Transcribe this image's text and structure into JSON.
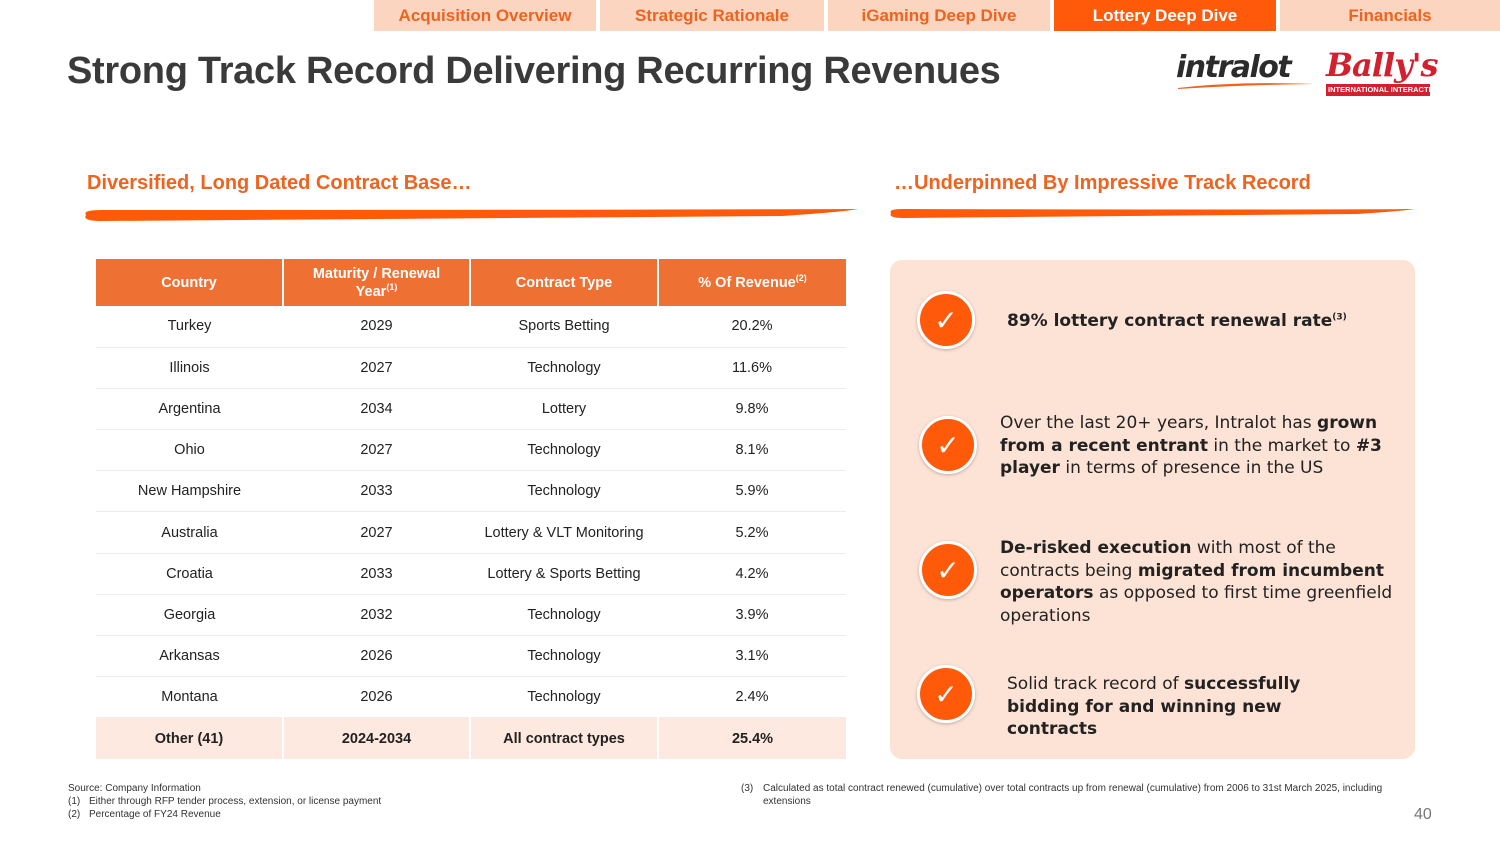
{
  "nav": {
    "tabs": [
      {
        "label": "Acquisition Overview",
        "active": false
      },
      {
        "label": "Strategic Rationale",
        "active": false
      },
      {
        "label": "iGaming Deep Dive",
        "active": false
      },
      {
        "label": "Lottery Deep Dive",
        "active": true
      },
      {
        "label": "Financials",
        "active": false
      }
    ]
  },
  "title": "Strong Track Record Delivering Recurring Revenues",
  "logos": {
    "intralot": "intralot",
    "ballys": "Bally's",
    "ballys_sub": "INTERNATIONAL INTERACTIVE"
  },
  "left_heading": "Diversified, Long Dated Contract Base…",
  "right_heading": "…Underpinned By Impressive Track Record",
  "table": {
    "headers": {
      "country": "Country",
      "maturity": "Maturity / Renewal Year",
      "maturity_note": "(1)",
      "contract_type": "Contract Type",
      "revenue": "% Of Revenue",
      "revenue_note": "(2)"
    },
    "rows": [
      {
        "country": "Turkey",
        "year": "2029",
        "type": "Sports Betting",
        "revenue": "20.2%"
      },
      {
        "country": "Illinois",
        "year": "2027",
        "type": "Technology",
        "revenue": "11.6%"
      },
      {
        "country": "Argentina",
        "year": "2034",
        "type": "Lottery",
        "revenue": "9.8%"
      },
      {
        "country": "Ohio",
        "year": "2027",
        "type": "Technology",
        "revenue": "8.1%"
      },
      {
        "country": "New Hampshire",
        "year": "2033",
        "type": "Technology",
        "revenue": "5.9%"
      },
      {
        "country": "Australia",
        "year": "2027",
        "type": "Lottery & VLT Monitoring",
        "revenue": "5.2%"
      },
      {
        "country": "Croatia",
        "year": "2033",
        "type": "Lottery & Sports Betting",
        "revenue": "4.2%"
      },
      {
        "country": "Georgia",
        "year": "2032",
        "type": "Technology",
        "revenue": "3.9%"
      },
      {
        "country": "Arkansas",
        "year": "2026",
        "type": "Technology",
        "revenue": "3.1%"
      },
      {
        "country": "Montana",
        "year": "2026",
        "type": "Technology",
        "revenue": "2.4%"
      }
    ],
    "other": {
      "country": "Other (41)",
      "year": "2024-2034",
      "type": "All contract types",
      "revenue": "25.4%"
    }
  },
  "points": {
    "p1": {
      "bold1": "89% lottery contract renewal rate",
      "note": "(3)"
    },
    "p2": {
      "t1": "Over the last 20+ years, Intralot has ",
      "b1": "grown from a recent entrant",
      "t2": " in the market to ",
      "b2": "#3 player",
      "t3": " in terms of presence in the US"
    },
    "p3": {
      "b1": "De-risked execution",
      "t1": " with most of the contracts being ",
      "b2": "migrated from incumbent operators",
      "t2": " as opposed to first time greenfield operations"
    },
    "p4": {
      "t1": "Solid track record of ",
      "b1": "successfully bidding for and winning new contracts"
    }
  },
  "check_glyph": "✓",
  "footnotes": {
    "source": "Source: Company Information",
    "n1_num": "(1)",
    "n1": "Either through RFP tender process, extension, or license payment",
    "n2_num": "(2)",
    "n2": "Percentage of FY24 Revenue",
    "n3_num": "(3)",
    "n3": "Calculated as total contract renewed (cumulative) over total contracts up from renewal (cumulative) from 2006 to 31st March 2025, including extensions"
  },
  "page_number": "40",
  "colors": {
    "accent": "#ff5a0a",
    "tab_inactive": "#fcd5c0",
    "table_header": "#ee7033",
    "panel_bg": "#fde3d5",
    "brand_red": "#d2202f"
  }
}
